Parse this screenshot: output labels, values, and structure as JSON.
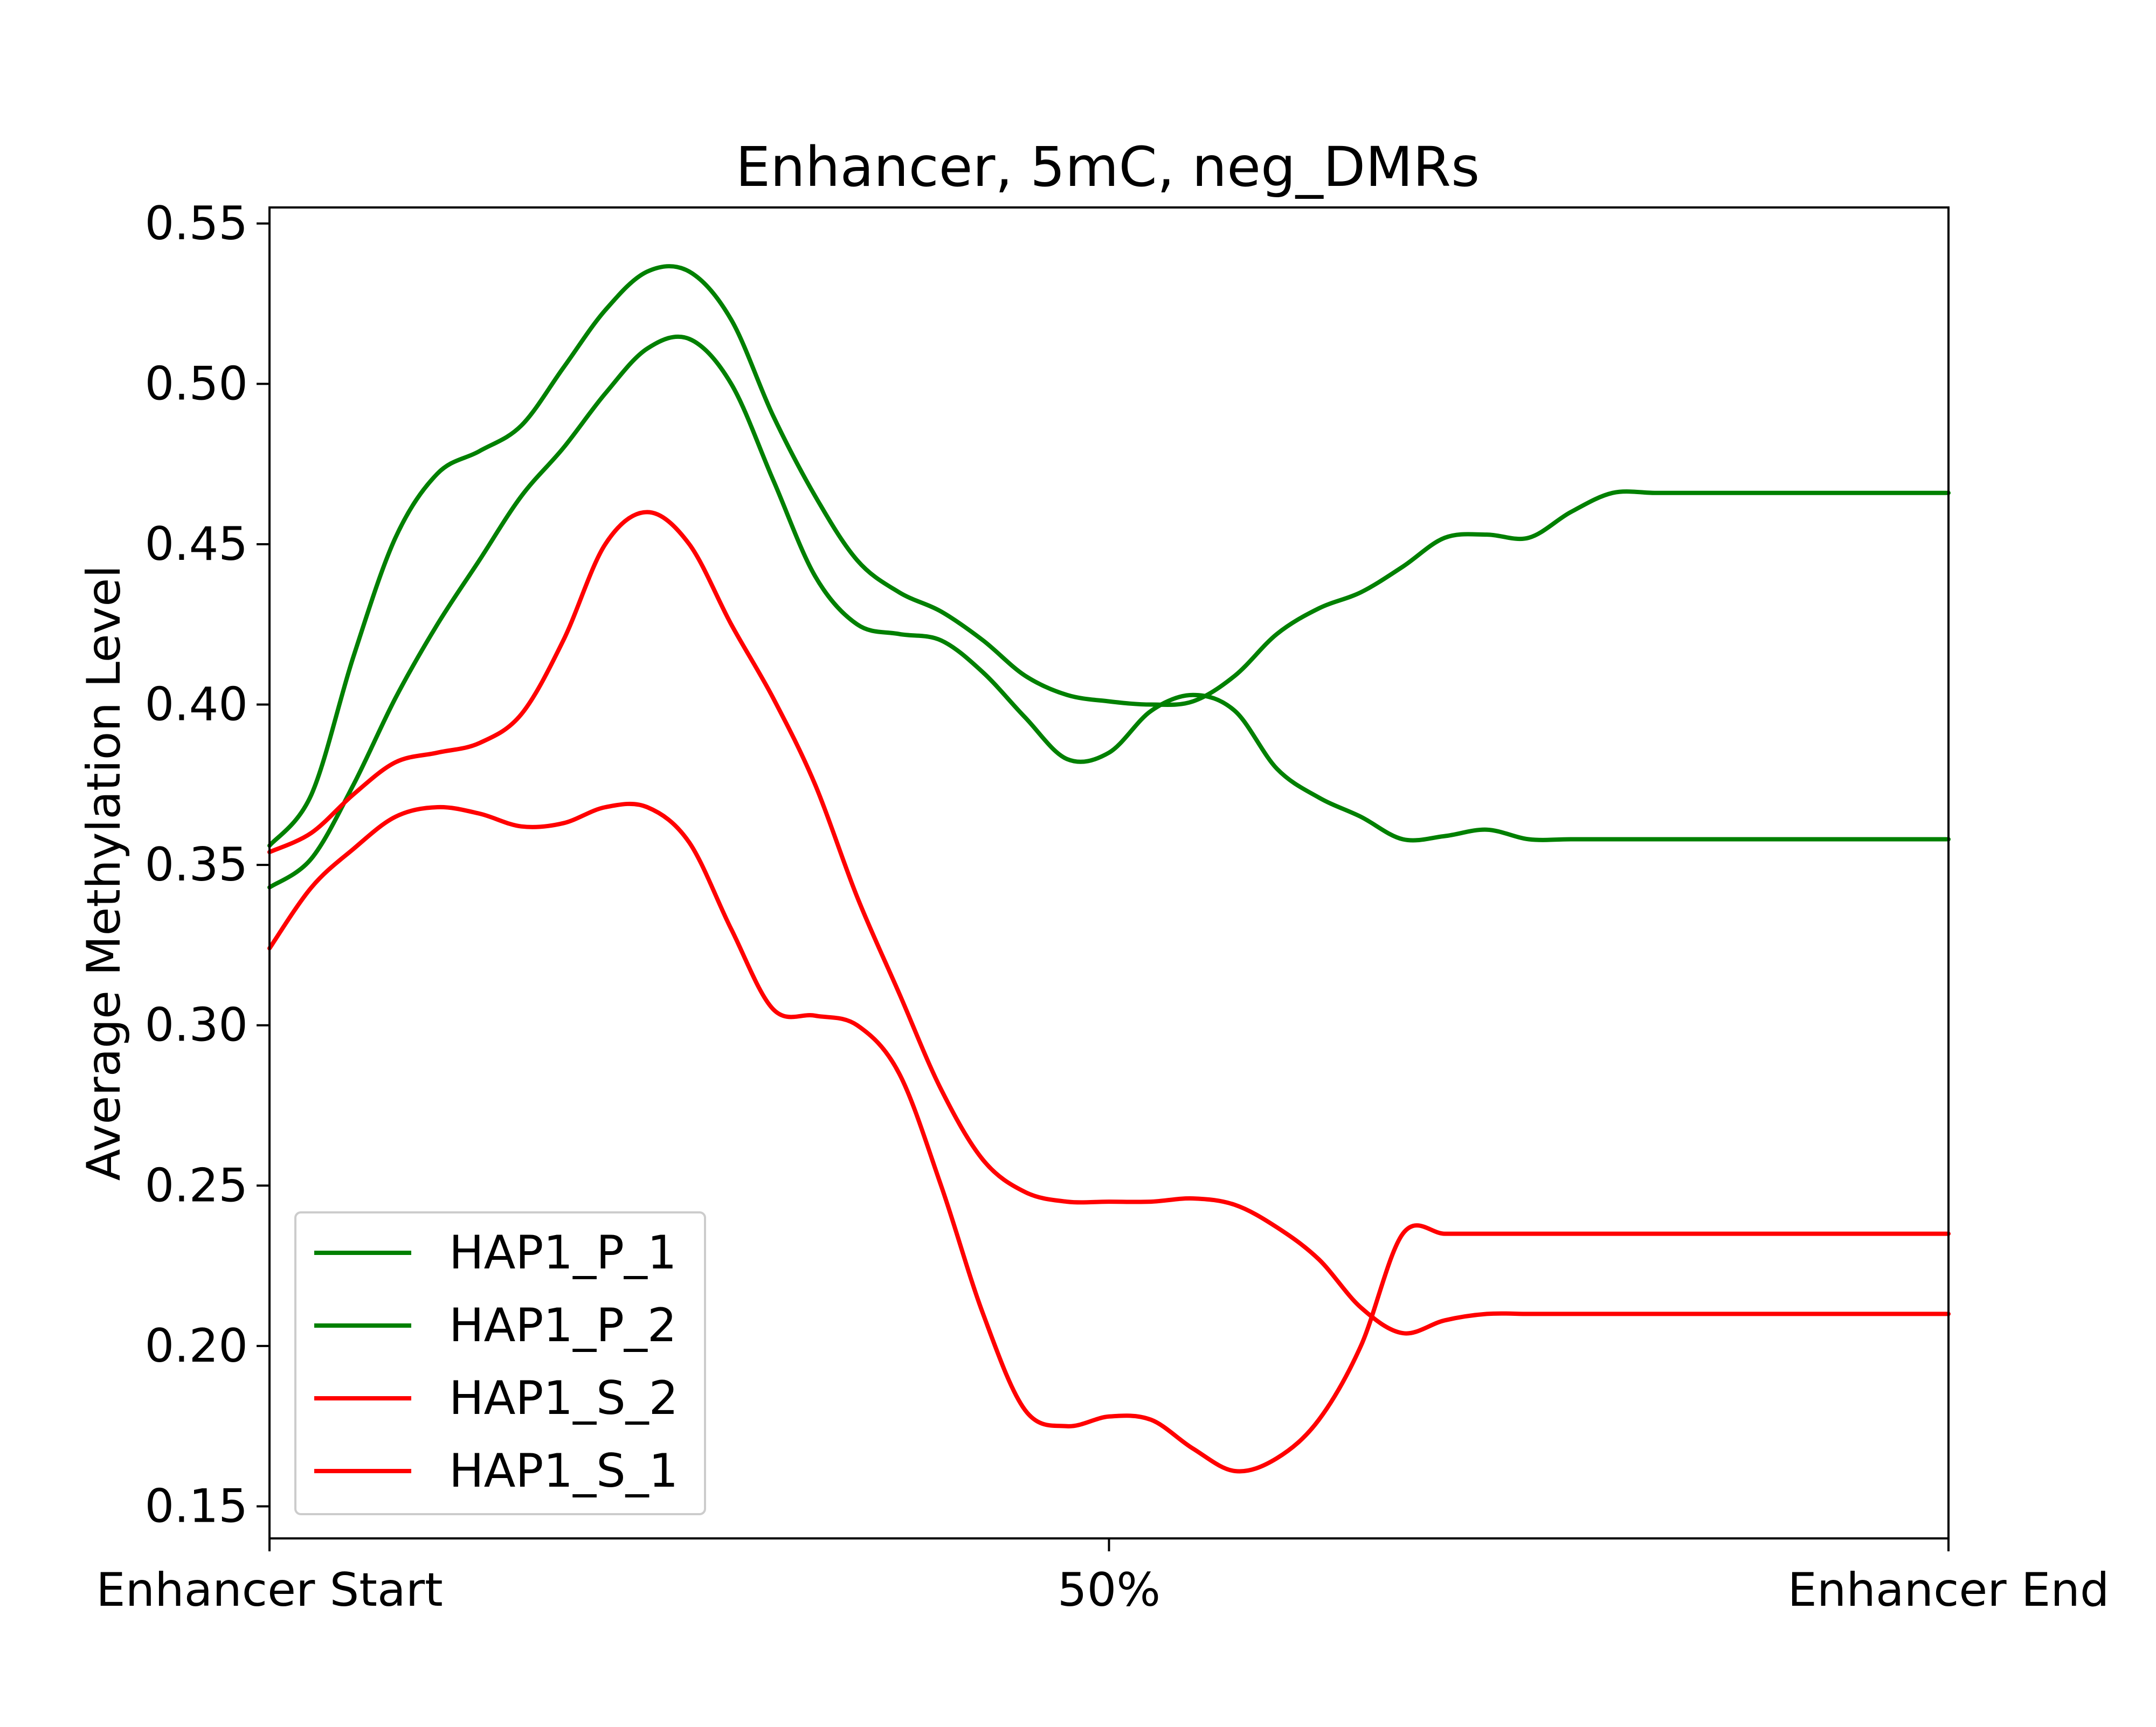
{
  "chart_data": {
    "type": "line",
    "title": "Enhancer, 5mC, neg_DMRs",
    "xlabel": "",
    "ylabel": "Average Methylation Level",
    "x_tick_labels": [
      "Enhancer Start",
      "50%",
      "Enhancer End"
    ],
    "x_tick_positions": [
      0,
      50,
      100
    ],
    "xlim": [
      0,
      100
    ],
    "ylim": [
      0.14,
      0.555
    ],
    "y_ticks": [
      0.15,
      0.2,
      0.25,
      0.3,
      0.35,
      0.4,
      0.45,
      0.5,
      0.55
    ],
    "y_tick_labels": [
      "0.15",
      "0.20",
      "0.25",
      "0.30",
      "0.35",
      "0.40",
      "0.45",
      "0.50",
      "0.55"
    ],
    "grid": false,
    "legend_position": "lower-left",
    "x": [
      0,
      2.5,
      5,
      7.5,
      10,
      12.5,
      15,
      17.5,
      20,
      22.5,
      25,
      27.5,
      30,
      32.5,
      35,
      37.5,
      40,
      42.5,
      45,
      47.5,
      50,
      52.5,
      55,
      57.5,
      60,
      62.5,
      65,
      67.5,
      70,
      72.5,
      75,
      77.5,
      80,
      82.5,
      85,
      87.5,
      90,
      92.5,
      95,
      97.5,
      100
    ],
    "series": [
      {
        "name": "HAP1_P_1",
        "color": "#008000",
        "values": [
          0.356,
          0.372,
          0.415,
          0.452,
          0.472,
          0.479,
          0.487,
          0.505,
          0.523,
          0.535,
          0.535,
          0.52,
          0.49,
          0.465,
          0.445,
          0.435,
          0.429,
          0.42,
          0.409,
          0.403,
          0.401,
          0.4,
          0.401,
          0.409,
          0.422,
          0.43,
          0.435,
          0.443,
          0.452,
          0.453,
          0.452,
          0.46,
          0.466,
          0.466,
          0.466,
          0.466,
          0.466,
          0.466,
          0.466,
          0.466,
          0.466
        ]
      },
      {
        "name": "HAP1_P_2",
        "color": "#008000",
        "values": [
          0.343,
          0.352,
          0.375,
          0.402,
          0.425,
          0.445,
          0.465,
          0.48,
          0.497,
          0.511,
          0.514,
          0.5,
          0.47,
          0.44,
          0.425,
          0.422,
          0.42,
          0.41,
          0.396,
          0.383,
          0.385,
          0.398,
          0.403,
          0.398,
          0.38,
          0.371,
          0.365,
          0.358,
          0.359,
          0.361,
          0.358,
          0.358,
          0.358,
          0.358,
          0.358,
          0.358,
          0.358,
          0.358,
          0.358,
          0.358,
          0.358
        ]
      },
      {
        "name": "HAP1_S_2",
        "color": "#ff0000",
        "values": [
          0.354,
          0.36,
          0.372,
          0.382,
          0.385,
          0.388,
          0.397,
          0.42,
          0.45,
          0.46,
          0.45,
          0.425,
          0.402,
          0.375,
          0.34,
          0.31,
          0.28,
          0.258,
          0.248,
          0.245,
          0.245,
          0.245,
          0.246,
          0.244,
          0.237,
          0.227,
          0.212,
          0.204,
          0.208,
          0.21,
          0.21,
          0.21,
          0.21,
          0.21,
          0.21,
          0.21,
          0.21,
          0.21,
          0.21,
          0.21,
          0.21
        ]
      },
      {
        "name": "HAP1_S_1",
        "color": "#ff0000",
        "values": [
          0.324,
          0.343,
          0.355,
          0.365,
          0.368,
          0.366,
          0.362,
          0.363,
          0.368,
          0.368,
          0.357,
          0.33,
          0.305,
          0.303,
          0.3,
          0.285,
          0.25,
          0.21,
          0.18,
          0.175,
          0.178,
          0.177,
          0.168,
          0.161,
          0.165,
          0.177,
          0.2,
          0.235,
          0.235,
          0.235,
          0.235,
          0.235,
          0.235,
          0.235,
          0.235,
          0.235,
          0.235,
          0.235,
          0.235,
          0.235,
          0.235
        ]
      }
    ]
  }
}
